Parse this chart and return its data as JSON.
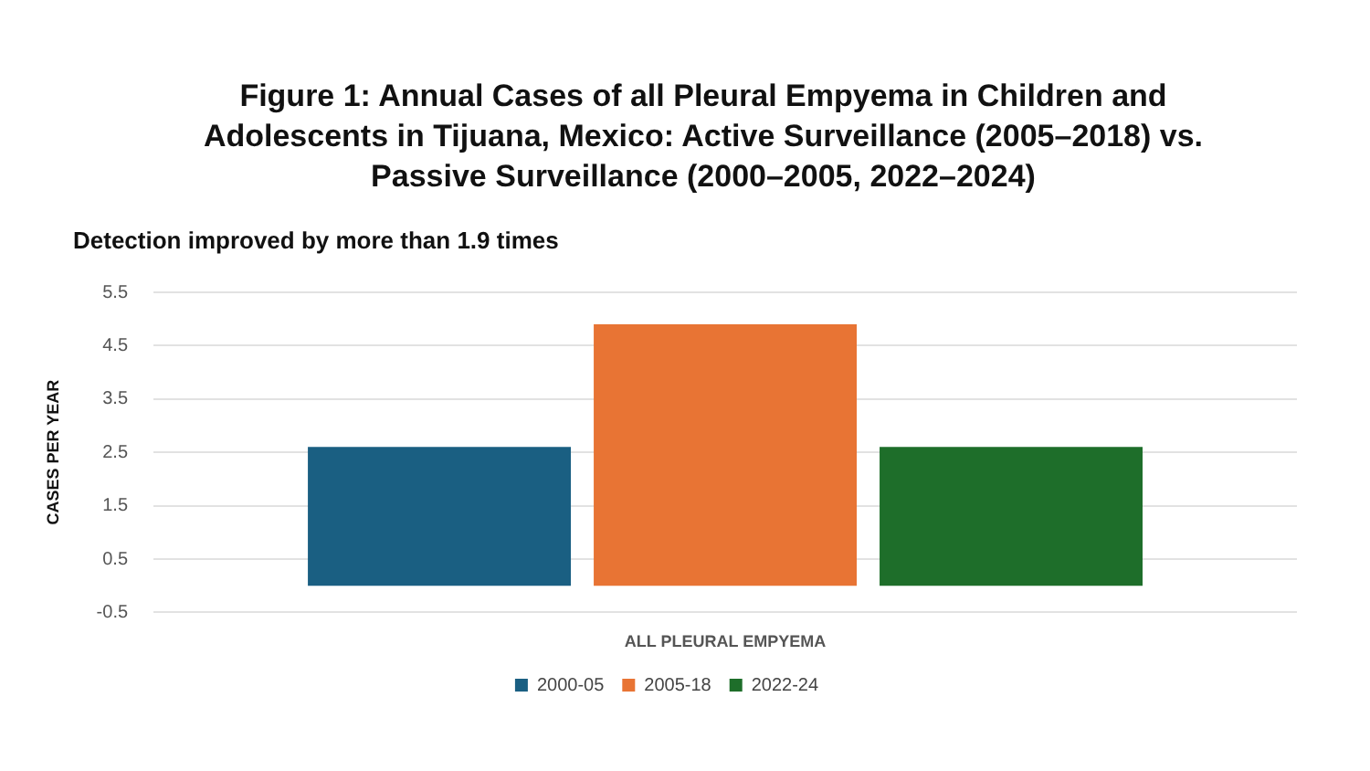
{
  "chart_data": {
    "type": "bar",
    "title": "Figure 1: Annual Cases of all Pleural Empyema in Children and Adolescents in Tijuana, Mexico: Active Surveillance (2005–2018) vs. Passive Surveillance (2000–2005, 2022–2024)",
    "subtitle": "Detection improved by more than 1.9 times",
    "ylabel": "CASES PER YEAR",
    "categories": [
      "ALL PLEURAL EMPYEMA"
    ],
    "series": [
      {
        "name": "2000-05",
        "color": "#1a5f82",
        "values": [
          2.6
        ]
      },
      {
        "name": "2005-18",
        "color": "#e87434",
        "values": [
          4.9
        ]
      },
      {
        "name": "2022-24",
        "color": "#1e6e2a",
        "values": [
          2.6
        ]
      }
    ],
    "ylim": [
      -0.5,
      5.5
    ],
    "yticks": [
      -0.5,
      0.5,
      1.5,
      2.5,
      3.5,
      4.5,
      5.5
    ],
    "grid": "y",
    "legend": "bottom"
  }
}
